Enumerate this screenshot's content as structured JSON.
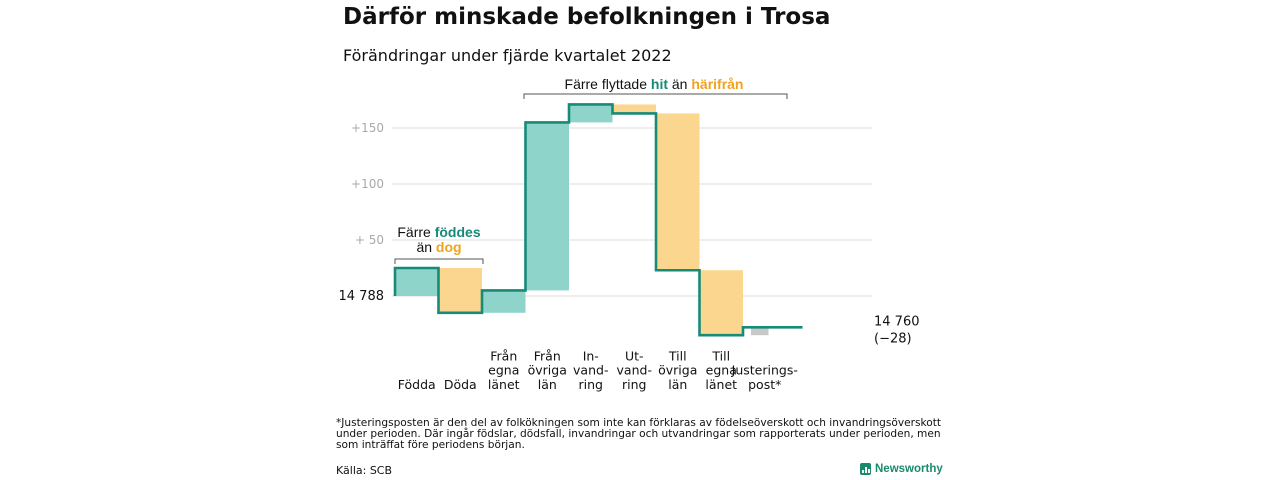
{
  "title": "Därför minskade befolkningen i Trosa",
  "subtitle": "Förändringar under fjärde kvartalet 2022",
  "colors": {
    "increase": "#8fd4cb",
    "decrease": "#fbd68f",
    "adjustment": "#c8c8c8",
    "line": "#178a78",
    "teal_text": "#178a78",
    "orange_text": "#f0a31c"
  },
  "chart_data": {
    "type": "waterfall",
    "start": {
      "label": "14 788",
      "value": 14788
    },
    "end": {
      "label": "14 760",
      "sub": "(−28)",
      "value": 14760
    },
    "steps": [
      {
        "name": "Födda",
        "lines": [
          "Födda"
        ],
        "value": 25
      },
      {
        "name": "Döda",
        "lines": [
          "Döda"
        ],
        "value": -40
      },
      {
        "name": "Från egna länet",
        "lines": [
          "Från",
          "egna",
          "länet"
        ],
        "value": 20
      },
      {
        "name": "Från övriga län",
        "lines": [
          "Från",
          "övriga",
          "län"
        ],
        "value": 150
      },
      {
        "name": "Invandring",
        "lines": [
          "In-",
          "vand-",
          "ring"
        ],
        "value": 16
      },
      {
        "name": "Utvandring",
        "lines": [
          "Ut-",
          "vand-",
          "ring"
        ],
        "value": -8
      },
      {
        "name": "Till övriga län",
        "lines": [
          "Till",
          "övriga",
          "län"
        ],
        "value": -140
      },
      {
        "name": "Till egna länet",
        "lines": [
          "Till",
          "egna",
          "länet"
        ],
        "value": -58
      },
      {
        "name": "Justeringspost*",
        "lines": [
          "Justerings-",
          "post*"
        ],
        "value": 7
      }
    ],
    "y_ticks": [
      {
        "label": "+150",
        "value": 150
      },
      {
        "label": "+100",
        "value": 100
      },
      {
        "label": "+ 50",
        "value": 50
      }
    ],
    "grid": true,
    "annotations": [
      {
        "parts": [
          {
            "text": "Färre ",
            "color": "plain"
          },
          {
            "text": "föddes",
            "color": "teal"
          }
        ],
        "line2": [
          {
            "text": "än ",
            "color": "plain"
          },
          {
            "text": "dog",
            "color": "orange"
          }
        ]
      },
      {
        "parts": [
          {
            "text": "Färre flyttade ",
            "color": "plain"
          },
          {
            "text": "hit",
            "color": "teal"
          },
          {
            "text": " än ",
            "color": "plain"
          },
          {
            "text": "härifrån",
            "color": "orange"
          }
        ]
      }
    ]
  },
  "footnote": "*Justeringsposten är den del av folkökningen som inte kan förklaras av födelseöverskott och invandringsöverskott under perioden. Där ingår födslar, dödsfall, invandringar och utvandringar som rapporterats under perioden, men som inträffat före periodens början.",
  "source": "Källa: SCB",
  "brand": "Newsworthy"
}
